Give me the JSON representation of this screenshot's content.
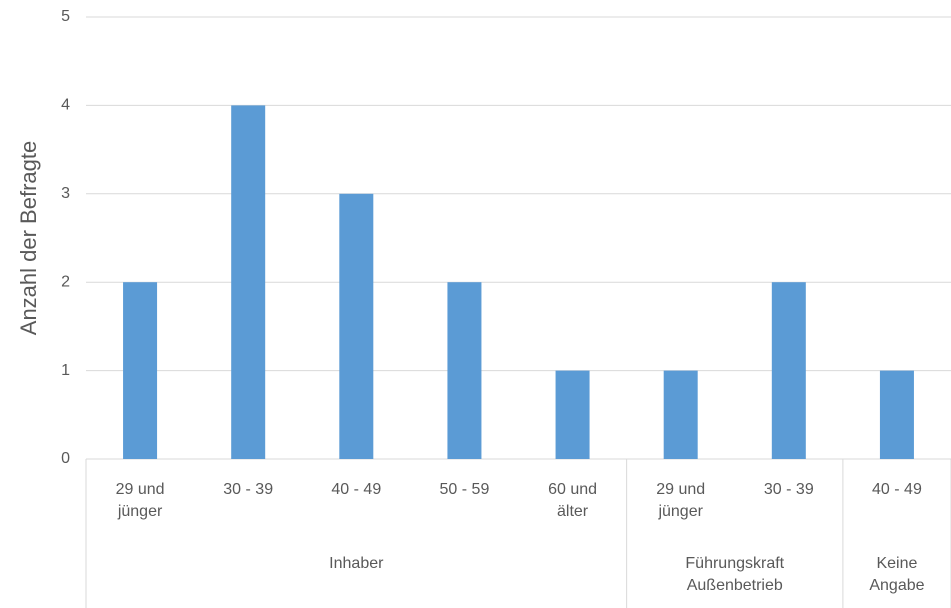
{
  "chart_data": {
    "type": "bar",
    "y_label": "Anzahl der Befragte",
    "color": "#5b9bd5",
    "groups": [
      {
        "name": "Inhaber",
        "categories": [
          "29 und jünger",
          "30 - 39",
          "40 - 49",
          "50 - 59",
          "60 und älter"
        ],
        "values": [
          2,
          4,
          3,
          2,
          1
        ]
      },
      {
        "name": "Führungskraft Außenbetrieb",
        "categories": [
          "29 und jünger",
          "30 - 39"
        ],
        "values": [
          1,
          2
        ]
      },
      {
        "name": "Keine Angabe",
        "categories": [
          "40 - 49"
        ],
        "values": [
          1
        ]
      }
    ],
    "ylim": [
      0,
      5
    ],
    "yticks": [
      0,
      1,
      2,
      3,
      4,
      5
    ],
    "grid": true
  }
}
